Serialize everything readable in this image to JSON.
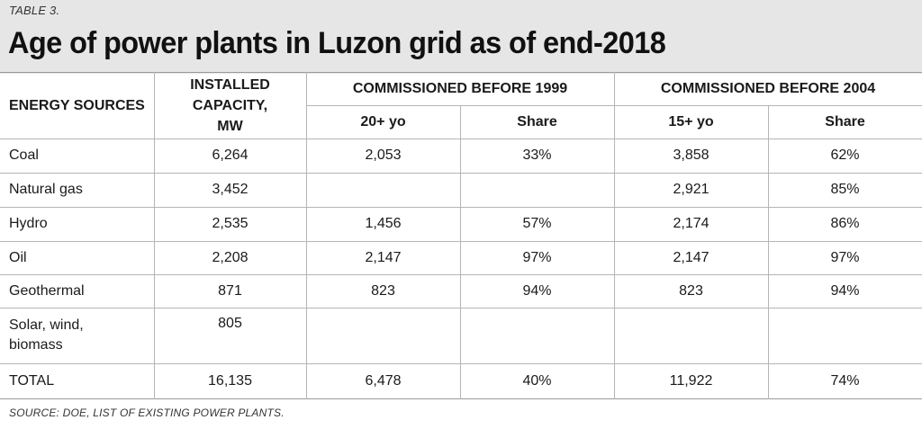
{
  "table_label": "TABLE 3.",
  "title": "Age of power plants in Luzon grid as of end-2018",
  "headers": {
    "energy_sources": "ENERGY SOURCES",
    "installed_capacity": "INSTALLED CAPACITY, MW",
    "group_1999": "COMMISSIONED BEFORE 1999",
    "group_2004": "COMMISSIONED BEFORE 2004",
    "sub_20yo": "20+ yo",
    "sub_share_1": "Share",
    "sub_15yo": "15+ yo",
    "sub_share_2": "Share"
  },
  "rows": [
    {
      "source": "Coal",
      "capacity": "6,264",
      "y20": "2,053",
      "share1999": "33%",
      "y15": "3,858",
      "share2004": "62%"
    },
    {
      "source": "Natural gas",
      "capacity": "3,452",
      "y20": "",
      "share1999": "",
      "y15": "2,921",
      "share2004": "85%"
    },
    {
      "source": "Hydro",
      "capacity": "2,535",
      "y20": "1,456",
      "share1999": "57%",
      "y15": "2,174",
      "share2004": "86%"
    },
    {
      "source": "Oil",
      "capacity": "2,208",
      "y20": "2,147",
      "share1999": "97%",
      "y15": "2,147",
      "share2004": "97%"
    },
    {
      "source": "Geothermal",
      "capacity": "871",
      "y20": "823",
      "share1999": "94%",
      "y15": "823",
      "share2004": "94%"
    },
    {
      "source": "Solar, wind, biomass",
      "capacity": "805",
      "y20": "",
      "share1999": "",
      "y15": "",
      "share2004": ""
    }
  ],
  "total": {
    "source": "TOTAL",
    "capacity": "16,135",
    "y20": "6,478",
    "share1999": "40%",
    "y15": "11,922",
    "share2004": "74%"
  },
  "source_note": "SOURCE: DOE, LIST OF EXISTING POWER PLANTS."
}
